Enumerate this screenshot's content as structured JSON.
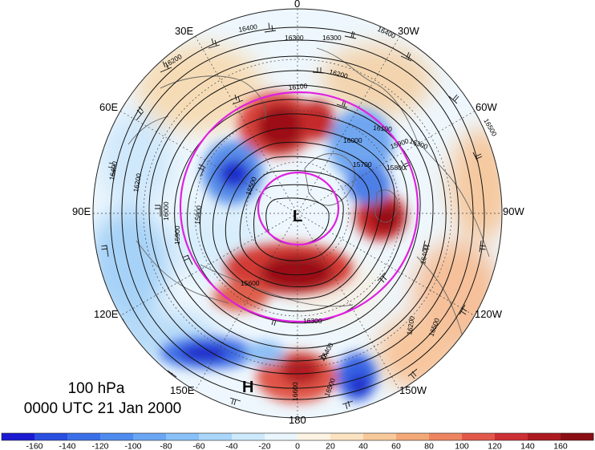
{
  "info": {
    "level": "100 hPa",
    "time": "0000 UTC 21 Jan 2000"
  },
  "map": {
    "projection": "north polar stereographic",
    "longitude_labels": [
      {
        "key": "0",
        "text": "0"
      },
      {
        "key": "30W",
        "text": "30W"
      },
      {
        "key": "60W",
        "text": "60W"
      },
      {
        "key": "90W",
        "text": "90W"
      },
      {
        "key": "120W",
        "text": "120W"
      },
      {
        "key": "150W",
        "text": "150W"
      },
      {
        "key": "180",
        "text": "180"
      },
      {
        "key": "150E",
        "text": "150E"
      },
      {
        "key": "120E",
        "text": "120E"
      },
      {
        "key": "90E",
        "text": "90E"
      },
      {
        "key": "60E",
        "text": "60E"
      },
      {
        "key": "30E",
        "text": "30E"
      }
    ],
    "markers": [
      {
        "text": "L",
        "type": "low-center"
      },
      {
        "text": "H",
        "type": "high-center"
      }
    ],
    "contour_labels": [
      "16400",
      "16300",
      "16300",
      "16200",
      "16100",
      "16000",
      "15900",
      "15800",
      "15700",
      "15600",
      "15500",
      "16200",
      "16300",
      "16400",
      "16500",
      "16400",
      "16400",
      "16200",
      "16100",
      "16500",
      "16000",
      "15900",
      "15800",
      "16300",
      "16200",
      "16400",
      "16500",
      "16600"
    ],
    "reference_circles": [
      "magenta outer circle",
      "magenta inner circle"
    ],
    "colors": {
      "shading_positive_max": "#9b0d10",
      "shading_negative_max": "#1a1ec8",
      "contour": "#000000",
      "reference_circles": "#e020e0",
      "land": "#6b6b6b"
    }
  },
  "colorbar": {
    "tick_labels": [
      "-160",
      "-140",
      "-120",
      "-100",
      "-80",
      "-60",
      "-40",
      "-20",
      "0",
      "20",
      "40",
      "60",
      "80",
      "100",
      "120",
      "140",
      "160"
    ],
    "colors": [
      "#1b1ad0",
      "#2a4ee0",
      "#3b6fe8",
      "#4f8bee",
      "#6aa6f3",
      "#88c0f7",
      "#aad6fa",
      "#cde9fc",
      "#eaf6fd",
      "#fdf3e3",
      "#fbe3c2",
      "#f7c99a",
      "#f2a878",
      "#ec8560",
      "#e2584a",
      "#cc2f34",
      "#ac1a20",
      "#8a0d14"
    ]
  }
}
